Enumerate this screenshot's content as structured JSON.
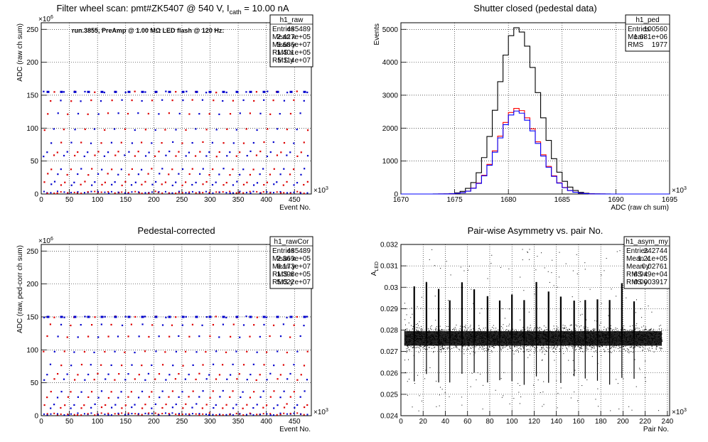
{
  "chart_data": [
    {
      "id": "raw",
      "type": "scatter",
      "title_parts": [
        "Filter wheel scan: pmt#ZK5407 @   540 V, I",
        "cath",
        " = 10.00 nA"
      ],
      "xlabel": "Event No.",
      "ylabel": "ADC (raw ch sum)",
      "xlim": [
        0,
        480000
      ],
      "ylim": [
        0,
        260000000
      ],
      "x_ticks": [
        0,
        50,
        100,
        150,
        200,
        250,
        300,
        350,
        400,
        450
      ],
      "x_exp": "×10",
      "x_exp_sup": "3",
      "y_ticks": [
        0,
        50,
        100,
        150,
        200,
        250
      ],
      "y_exp": "×10",
      "y_exp_sup": "6",
      "annotation": "run.3855, PreAmp @ 1.00 MΩ LED flash @  120 Hz:",
      "levels_millions": [
        155,
        142,
        122,
        98,
        78,
        64,
        58,
        38,
        30,
        18,
        14,
        2
      ],
      "stats": {
        "name": "h1_raw",
        "rows": [
          [
            "Entries",
            "485489"
          ],
          [
            "Mean x",
            "2.427e+05"
          ],
          [
            "Mean y",
            "5.686e+07"
          ],
          [
            "RMS x",
            "1.401e+05"
          ],
          [
            "RMS y",
            "5.114e+07"
          ]
        ]
      }
    },
    {
      "id": "ped",
      "type": "line",
      "title": "Shutter closed (pedestal data)",
      "xlabel": "ADC (raw ch sum)",
      "ylabel": "Events",
      "xlim": [
        1670000,
        1695000
      ],
      "ylim": [
        0,
        5200
      ],
      "x_ticks": [
        1670,
        1675,
        1680,
        1685,
        1690,
        1695
      ],
      "x_exp": "×10",
      "x_exp_sup": "3",
      "y_ticks": [
        0,
        1000,
        2000,
        3000,
        4000,
        5000
      ],
      "series": [
        {
          "color": "#000000",
          "peak": 5050,
          "center_k": 1680.8,
          "sigma_k": 1.75
        },
        {
          "color": "#ff0000",
          "peak": 2600,
          "center_k": 1680.8,
          "sigma_k": 1.75
        },
        {
          "color": "#0000ff",
          "peak": 2520,
          "center_k": 1680.8,
          "sigma_k": 1.75
        }
      ],
      "stats": {
        "name": "h1_ped",
        "rows": [
          [
            "Entries",
            "100560"
          ],
          [
            "Mean",
            "1.681e+06"
          ],
          [
            "RMS",
            "1977"
          ]
        ]
      }
    },
    {
      "id": "rawCor",
      "type": "scatter",
      "title": "Pedestal-corrected",
      "xlabel": "Event No.",
      "ylabel": "ADC (raw, ped-corr ch sum)",
      "xlim": [
        0,
        480000
      ],
      "ylim": [
        0,
        260000000
      ],
      "x_ticks": [
        0,
        50,
        100,
        150,
        200,
        250,
        300,
        350,
        400,
        450
      ],
      "x_exp": "×10",
      "x_exp_sup": "3",
      "y_ticks": [
        0,
        50,
        100,
        150,
        200,
        250
      ],
      "y_exp": "×10",
      "y_exp_sup": "6",
      "levels_millions": [
        150,
        138,
        120,
        97,
        77,
        63,
        55,
        37,
        28,
        17,
        12,
        2
      ],
      "stats": {
        "name": "h1_rawCor",
        "rows": [
          [
            "Entries",
            "485489"
          ],
          [
            "Mean x",
            "2.369e+05"
          ],
          [
            "Mean y",
            "6.173e+07"
          ],
          [
            "RMS x",
            "1.398e+05"
          ],
          [
            "RMS y",
            "5.022e+07"
          ]
        ]
      }
    },
    {
      "id": "asym",
      "type": "scatter",
      "title": "Pair-wise Asymmetry vs. pair No.",
      "xlabel": "Pair No.",
      "ylabel": "A",
      "ylabel_sub": "LED",
      "xlim": [
        0,
        242000
      ],
      "ylim": [
        0.024,
        0.032
      ],
      "x_ticks": [
        0,
        20,
        40,
        60,
        80,
        100,
        120,
        140,
        160,
        180,
        200,
        220,
        240
      ],
      "x_exp": "×10",
      "x_exp_sup": "3",
      "y_ticks": [
        0.024,
        0.025,
        0.026,
        0.027,
        0.028,
        0.029,
        0.03,
        0.031,
        0.032
      ],
      "band_center": 0.02761,
      "band_halfwidth": 0.0004,
      "spike_positions_k": [
        12,
        23,
        34,
        44,
        55,
        66,
        78,
        89,
        100,
        111,
        122,
        133,
        144,
        156,
        166,
        177,
        188,
        199,
        210
      ],
      "stats": {
        "name": "h1_asym_my",
        "rows": [
          [
            "Entries",
            "242744"
          ],
          [
            "Mean x",
            "1.21e+05"
          ],
          [
            "Mean y",
            "0.02761"
          ],
          [
            "RMS x",
            "6.949e+04"
          ],
          [
            "RMS y",
            "0.0003917"
          ]
        ]
      }
    }
  ]
}
